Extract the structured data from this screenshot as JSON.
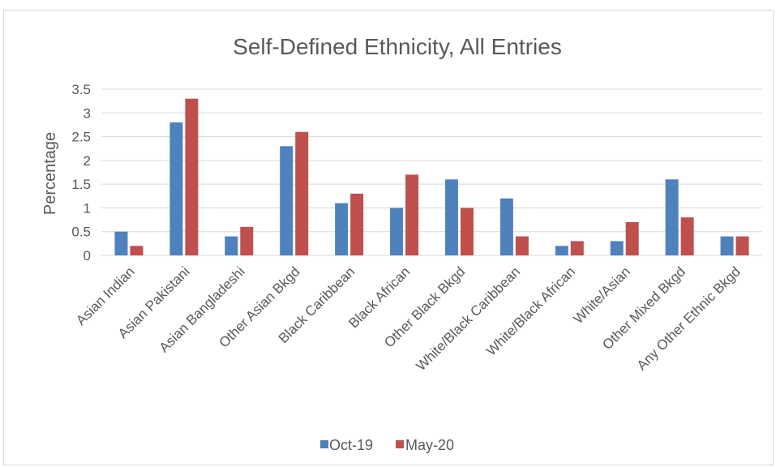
{
  "chart_data": {
    "type": "bar",
    "title": "Self-Defined Ethnicity, All Entries",
    "xlabel": "",
    "ylabel": "Percentage",
    "ylim": [
      0,
      3.5
    ],
    "yticks": [
      "0",
      "0.5",
      "1",
      "1.5",
      "2",
      "2.5",
      "3",
      "3.5"
    ],
    "grid": true,
    "legend_position": "bottom",
    "categories": [
      "Asian Indian",
      "Asian Pakistani",
      "Asian Bangladeshi",
      "Other Asian Bkgd",
      "Black Caribbean",
      "Black African",
      "Other Black Bkgd",
      "White/Black Caribbean",
      "White/Black African",
      "White/Asian",
      "Other Mixed Bkgd",
      "Any Other Ethnic Bkgd"
    ],
    "series": [
      {
        "name": "Oct-19",
        "color": "#4f81bd",
        "values": [
          0.5,
          2.8,
          0.4,
          2.3,
          1.1,
          1.0,
          1.6,
          1.2,
          0.2,
          0.3,
          1.6,
          0.4
        ]
      },
      {
        "name": "May-20",
        "color": "#c0504d",
        "values": [
          0.2,
          3.3,
          0.6,
          2.6,
          1.3,
          1.7,
          1.0,
          0.4,
          0.3,
          0.7,
          0.8,
          0.4
        ]
      }
    ]
  }
}
